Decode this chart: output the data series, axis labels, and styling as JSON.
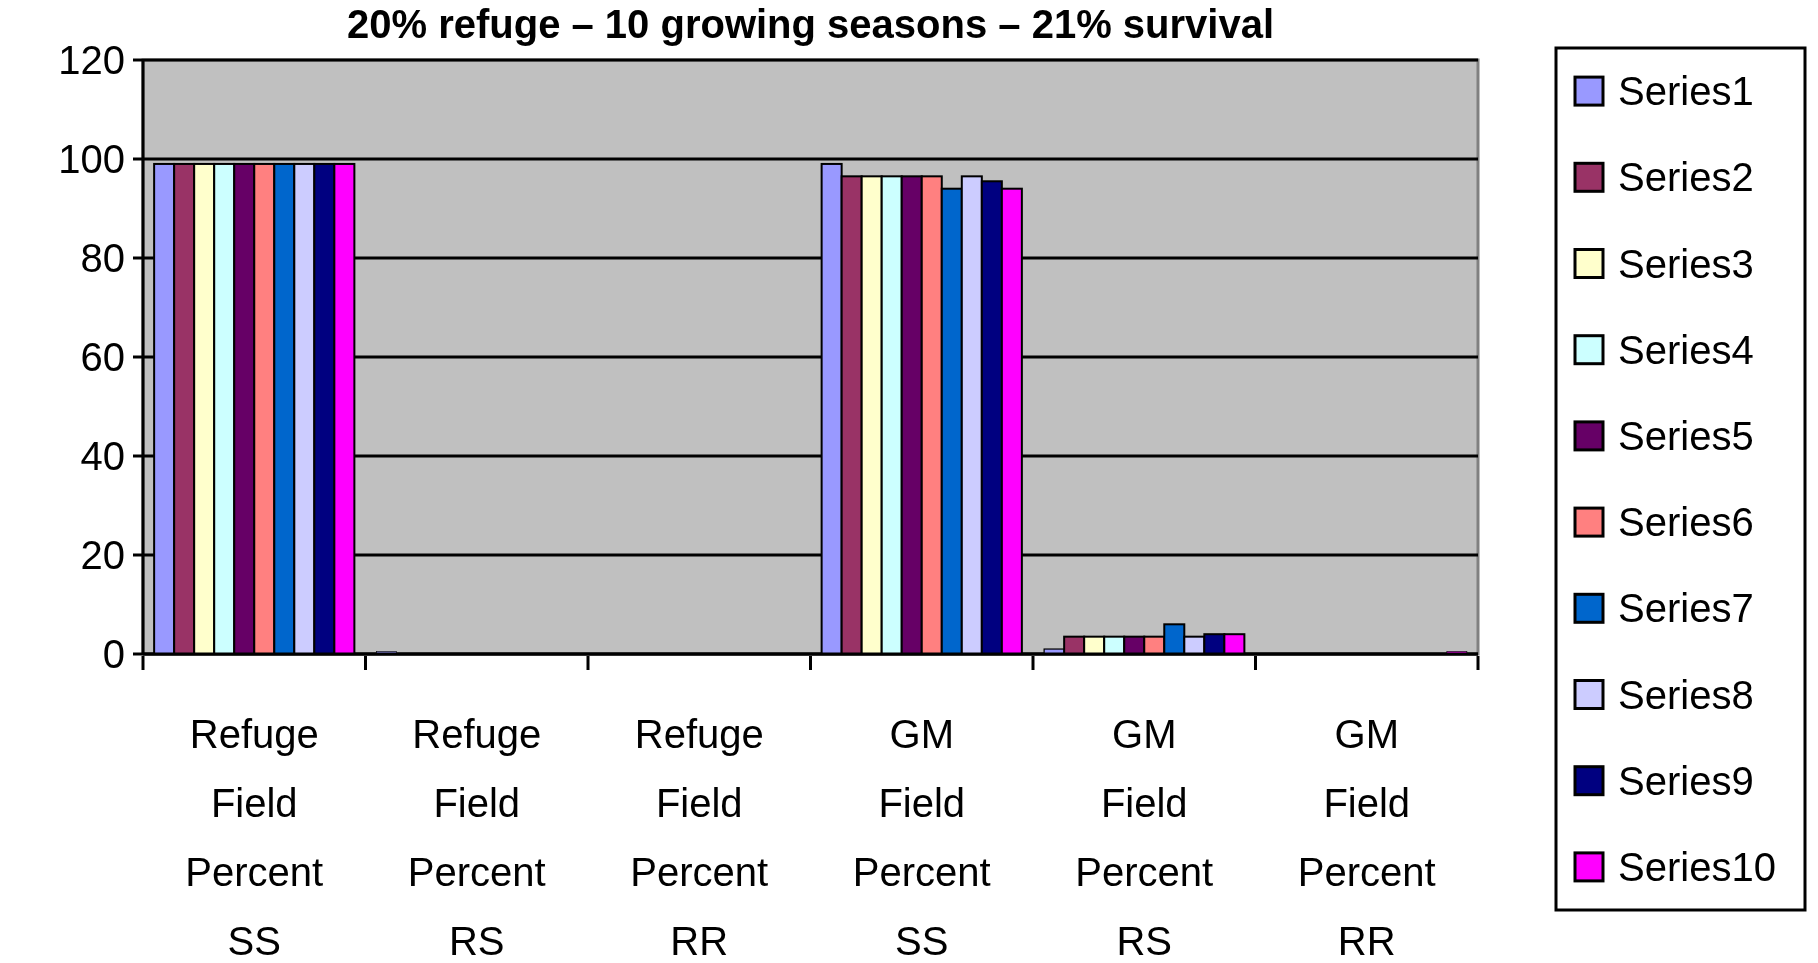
{
  "chart_data": {
    "type": "bar",
    "title": "20% refuge – 10 growing seasons – 21% survival",
    "categories": [
      "Refuge Field Percent SS",
      "Refuge Field Percent RS",
      "Refuge Field Percent RR",
      "GM Field Percent SS",
      "GM Field Percent RS",
      "GM Field Percent RR"
    ],
    "series": [
      {
        "name": "Series1",
        "color": "#9999ff",
        "values": [
          99,
          0.5,
          0,
          99,
          1,
          0
        ]
      },
      {
        "name": "Series2",
        "color": "#993366",
        "values": [
          99,
          0,
          0,
          96.5,
          3.5,
          0
        ]
      },
      {
        "name": "Series3",
        "color": "#ffffcc",
        "values": [
          99,
          0,
          0,
          96.5,
          3.5,
          0
        ]
      },
      {
        "name": "Series4",
        "color": "#ccffff",
        "values": [
          99,
          0,
          0,
          96.5,
          3.5,
          0
        ]
      },
      {
        "name": "Series5",
        "color": "#660066",
        "values": [
          99,
          0,
          0,
          96.5,
          3.5,
          0
        ]
      },
      {
        "name": "Series6",
        "color": "#ff8080",
        "values": [
          99,
          0,
          0,
          96.5,
          3.5,
          0
        ]
      },
      {
        "name": "Series7",
        "color": "#0066cc",
        "values": [
          99,
          0,
          0,
          94,
          6,
          0
        ]
      },
      {
        "name": "Series8",
        "color": "#ccccff",
        "values": [
          99,
          0,
          0,
          96.5,
          3.5,
          0
        ]
      },
      {
        "name": "Series9",
        "color": "#000080",
        "values": [
          99,
          0,
          0,
          95.5,
          4,
          0
        ]
      },
      {
        "name": "Series10",
        "color": "#ff00ff",
        "values": [
          99,
          0,
          0,
          94,
          4,
          0.5
        ]
      }
    ],
    "ylim": [
      0,
      120
    ],
    "yticks": [
      0,
      20,
      40,
      60,
      80,
      100,
      120
    ],
    "grid": "y",
    "legend": "right"
  }
}
